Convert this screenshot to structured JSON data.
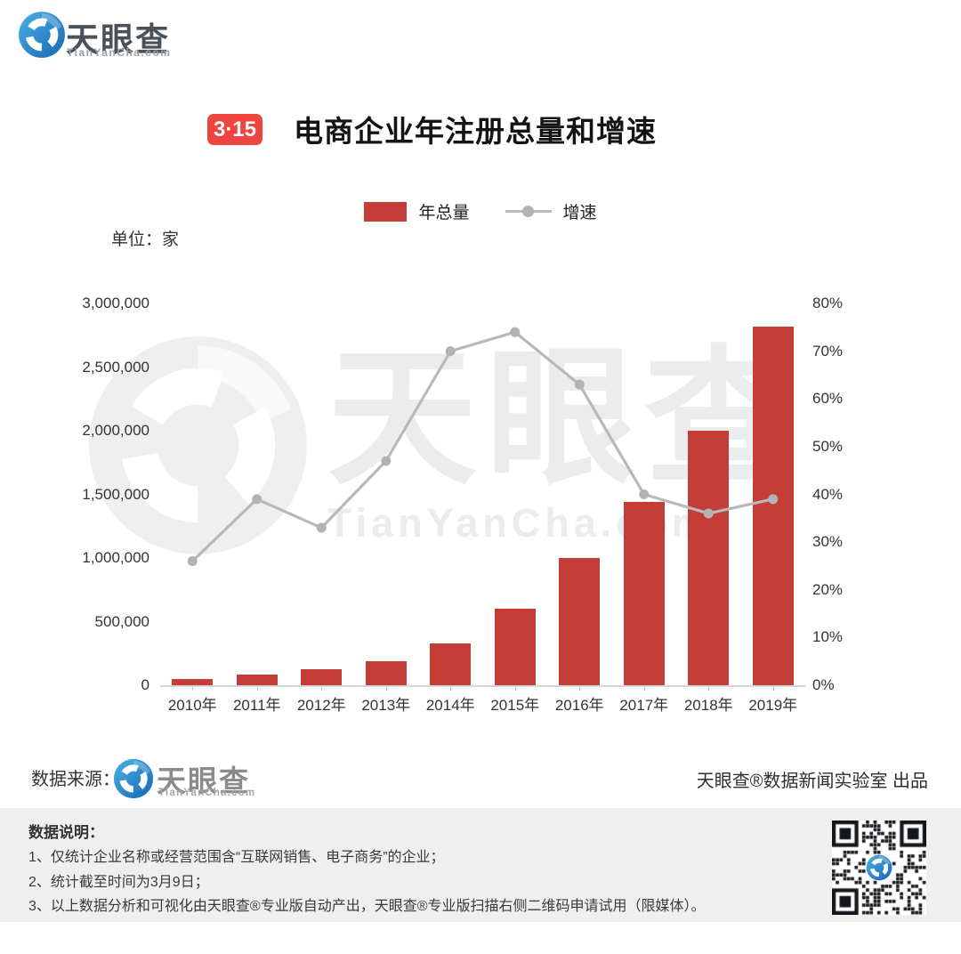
{
  "header_logo": {
    "name": "天眼查",
    "subtext": "TianYanCha.com"
  },
  "title": {
    "badge": "3·15",
    "text": "电商企业年注册总量和增速"
  },
  "legend": [
    {
      "label": "年总量",
      "type": "bar",
      "color": "#c43d36"
    },
    {
      "label": "增速",
      "type": "line",
      "color": "#b3b3b3"
    }
  ],
  "chart_data": {
    "type": "bar",
    "unit_label": "单位：家",
    "categories": [
      "2010年",
      "2011年",
      "2012年",
      "2013年",
      "2014年",
      "2015年",
      "2016年",
      "2017年",
      "2018年",
      "2019年"
    ],
    "series": [
      {
        "name": "年总量",
        "type": "bar",
        "axis": "left",
        "color": "#c43d36",
        "values": [
          50000,
          85000,
          125000,
          190000,
          330000,
          600000,
          1000000,
          1440000,
          2000000,
          2820000
        ]
      },
      {
        "name": "增速",
        "type": "line",
        "axis": "right",
        "color": "#b9b9b9",
        "unit": "%",
        "values": [
          26,
          39,
          33,
          47,
          70,
          74,
          63,
          40,
          36,
          39
        ]
      }
    ],
    "left_axis": {
      "min": 0,
      "max": 3000000,
      "ticks": [
        "3,000,000",
        "2,500,000",
        "2,000,000",
        "1,500,000",
        "1,000,000",
        "500,000",
        "0"
      ]
    },
    "right_axis": {
      "min": 0,
      "max": 80,
      "ticks": [
        "80%",
        "70%",
        "60%",
        "50%",
        "40%",
        "30%",
        "20%",
        "10%",
        "0%"
      ]
    },
    "legend_position": "top",
    "grid": false
  },
  "watermark": {
    "text": "天眼查",
    "subtext": "TianYanCha.com"
  },
  "source_row": {
    "label": "数据来源：",
    "logo_text": "天眼查",
    "logo_subtext": "TianYanCha.com",
    "credit": "天眼查®数据新闻实验室 出品"
  },
  "footer": {
    "heading": "数据说明：",
    "notes": [
      "1、仅统计企业名称或经营范围含“互联网销售、电子商务”的企业；",
      "2、统计截至时间为3月9日；",
      "3、以上数据分析和可视化由天眼查®专业版自动产出，天眼查®专业版扫描右侧二维码申请试用（限媒体）。"
    ]
  }
}
